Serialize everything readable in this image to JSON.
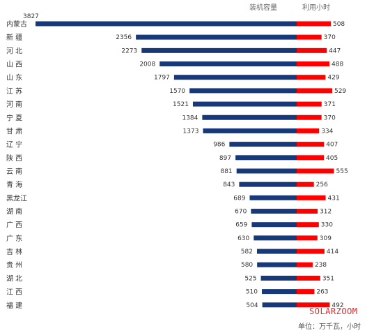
{
  "chart_data": {
    "type": "bar",
    "categories": [
      "内蒙古",
      "新 疆",
      "河 北",
      "山 西",
      "山 东",
      "江 苏",
      "河 南",
      "宁 夏",
      "甘 肃",
      "辽 宁",
      "陕 西",
      "云 南",
      "青 海",
      "黑龙江",
      "湖 南",
      "广 西",
      "广 东",
      "吉 林",
      "贵 州",
      "湖 北",
      "江 西",
      "福 建"
    ],
    "series": [
      {
        "name": "装机容量",
        "color": "#17397a",
        "values": [
          3827,
          2356,
          2273,
          2008,
          1797,
          1570,
          1521,
          1384,
          1373,
          986,
          897,
          881,
          843,
          689,
          670,
          659,
          630,
          582,
          580,
          525,
          510,
          504
        ]
      },
      {
        "name": "利用小时",
        "color": "#ff0000",
        "values": [
          508,
          370,
          447,
          488,
          429,
          529,
          371,
          370,
          334,
          407,
          405,
          555,
          256,
          431,
          312,
          330,
          309,
          414,
          238,
          351,
          263,
          492
        ]
      }
    ],
    "unit_note": "单位：万千瓦，小时"
  },
  "watermark": "SOLARZOOM"
}
